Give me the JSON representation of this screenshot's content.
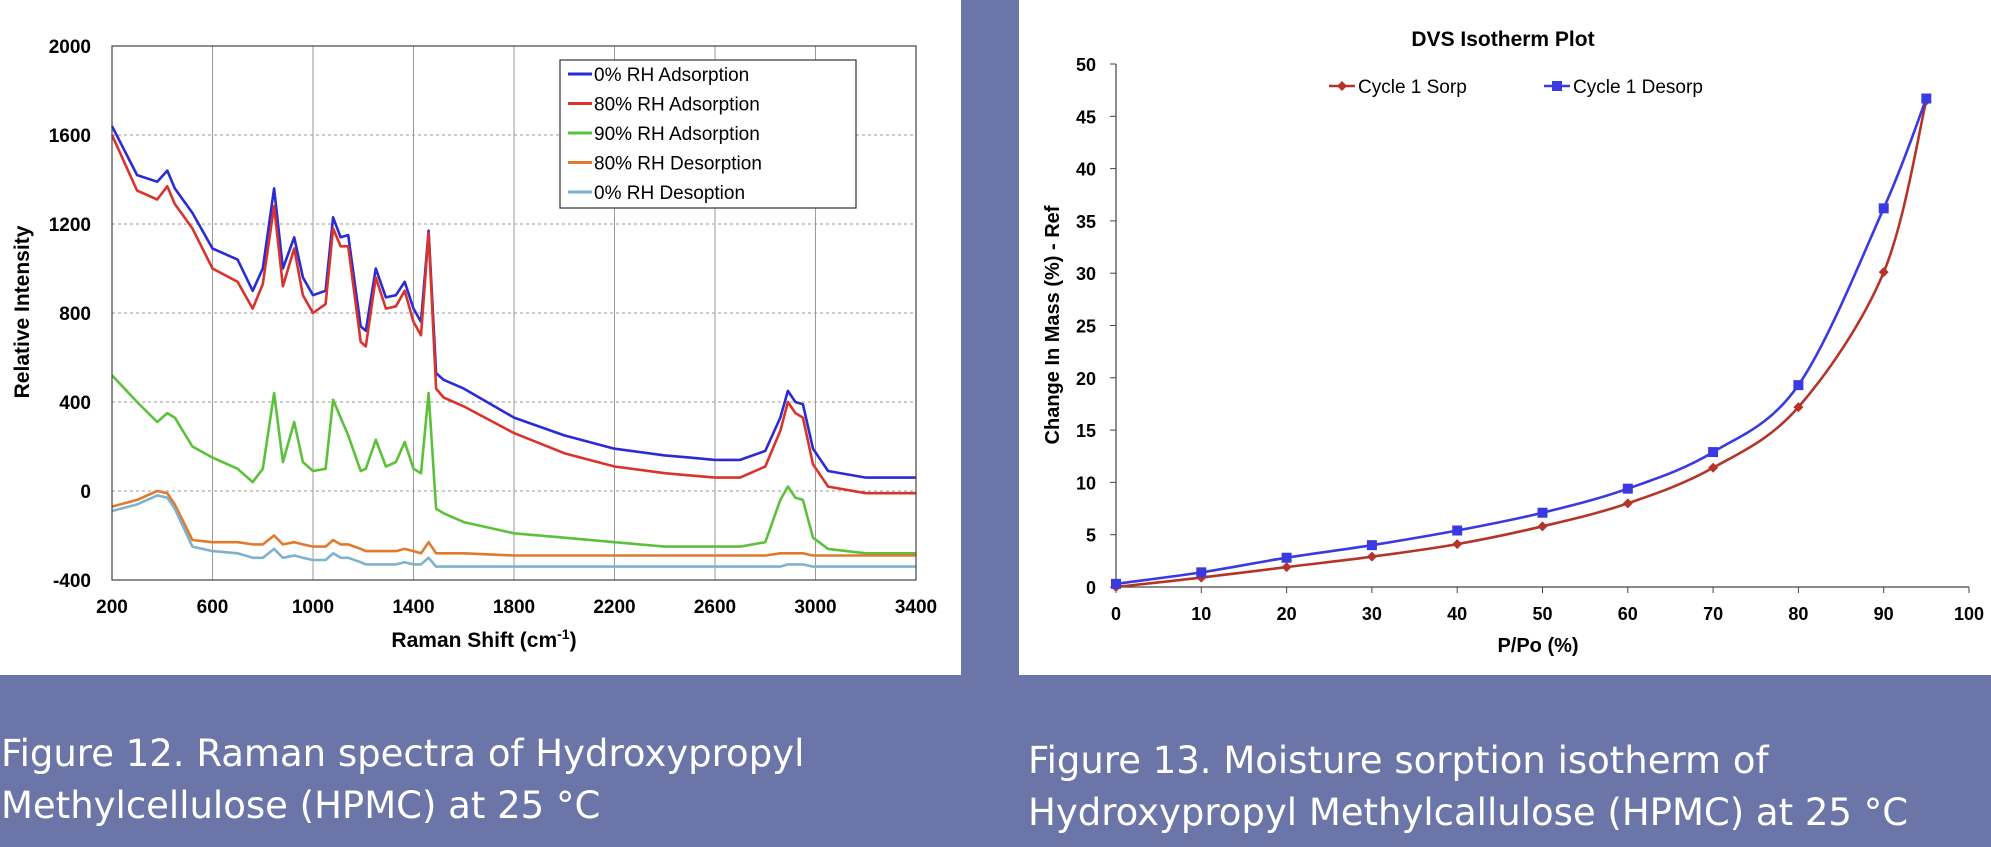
{
  "charts": {
    "raman": {
      "ylabel": "Relative Intensity",
      "xlabel_main": "Raman Shift (cm",
      "xlabel_sup": "-1",
      "xlabel_end": ")",
      "xticks": [
        "200",
        "600",
        "1000",
        "1400",
        "1800",
        "2200",
        "2600",
        "3000",
        "3400"
      ],
      "yticks": [
        "2000",
        "1600",
        "1200",
        "800",
        "400",
        "0",
        "-400"
      ],
      "legend": [
        "0% RH Adsorption",
        "80% RH Adsorption",
        "90% RH Adsorption",
        "80% RH Desorption",
        "0% RH Desoption"
      ]
    },
    "dvs": {
      "title": "DVS Isotherm Plot",
      "xlabel": "P/Po (%)",
      "ylabel": "Change In Mass (%) - Ref",
      "xticks": [
        "0",
        "10",
        "20",
        "30",
        "40",
        "50",
        "60",
        "70",
        "80",
        "90",
        "100"
      ],
      "yticks": [
        "50",
        "45",
        "40",
        "35",
        "30",
        "25",
        "20",
        "15",
        "10",
        "5",
        "0"
      ],
      "legend": [
        "Cycle 1 Sorp",
        "Cycle 1 Desorp"
      ]
    }
  },
  "captions": {
    "left": [
      "Figure 12. Raman spectra of Hydroxypropyl",
      "Methylcellulose (HPMC) at 25 °C"
    ],
    "right": [
      "Figure 13. Moisture sorption isotherm of",
      "Hydroxypropyl Methylcallulose (HPMC) at 25 °C"
    ]
  },
  "colors": {
    "page_background": "#6b75a7",
    "rh0_ads": "#2b2bd6",
    "rh80_ads": "#d8342b",
    "rh90_ads": "#5cc13a",
    "rh80_des": "#e07a2d",
    "rh0_des": "#7fb2cc",
    "sorp": "#b5342a",
    "desorp": "#3a3ae0"
  },
  "chart_data": [
    {
      "type": "line",
      "title": "",
      "xlabel": "Raman Shift (cm-1)",
      "ylabel": "Relative Intensity",
      "xlim": [
        200,
        3400
      ],
      "ylim": [
        -400,
        2000
      ],
      "grid": true,
      "legend_position": "top-right",
      "x": [
        200,
        300,
        380,
        420,
        450,
        520,
        600,
        700,
        760,
        800,
        845,
        880,
        925,
        960,
        1000,
        1050,
        1080,
        1110,
        1140,
        1190,
        1210,
        1250,
        1290,
        1330,
        1365,
        1400,
        1430,
        1460,
        1490,
        1520,
        1600,
        1800,
        2000,
        2200,
        2400,
        2500,
        2600,
        2700,
        2800,
        2860,
        2890,
        2920,
        2950,
        2990,
        3050,
        3200,
        3400
      ],
      "series": [
        {
          "name": "0% RH Adsorption",
          "values": [
            1640,
            1420,
            1390,
            1440,
            1360,
            1250,
            1090,
            1040,
            900,
            1000,
            1360,
            1000,
            1140,
            960,
            880,
            900,
            1230,
            1140,
            1150,
            740,
            720,
            1000,
            870,
            880,
            940,
            820,
            760,
            1170,
            530,
            500,
            460,
            330,
            250,
            190,
            160,
            150,
            140,
            140,
            180,
            330,
            450,
            400,
            390,
            190,
            90,
            60,
            60
          ]
        },
        {
          "name": "80% RH Adsorption",
          "values": [
            1600,
            1350,
            1310,
            1370,
            1290,
            1180,
            1000,
            940,
            820,
            930,
            1280,
            920,
            1090,
            880,
            800,
            840,
            1180,
            1100,
            1100,
            670,
            650,
            960,
            820,
            830,
            900,
            760,
            700,
            1160,
            460,
            420,
            380,
            260,
            170,
            110,
            80,
            70,
            60,
            60,
            110,
            270,
            400,
            350,
            330,
            120,
            20,
            -10,
            -10
          ]
        },
        {
          "name": "90% RH Adsorption",
          "values": [
            520,
            400,
            310,
            350,
            330,
            200,
            150,
            100,
            40,
            100,
            440,
            130,
            310,
            130,
            90,
            100,
            410,
            330,
            250,
            90,
            100,
            230,
            110,
            130,
            220,
            100,
            80,
            440,
            -80,
            -100,
            -140,
            -190,
            -210,
            -230,
            -250,
            -250,
            -250,
            -250,
            -230,
            -40,
            20,
            -30,
            -40,
            -210,
            -260,
            -280,
            -280
          ]
        },
        {
          "name": "80% RH Desorption",
          "values": [
            -70,
            -40,
            0,
            -10,
            -60,
            -220,
            -230,
            -230,
            -240,
            -240,
            -200,
            -240,
            -230,
            -240,
            -250,
            -250,
            -220,
            -240,
            -240,
            -260,
            -270,
            -270,
            -270,
            -270,
            -260,
            -270,
            -280,
            -230,
            -280,
            -280,
            -280,
            -290,
            -290,
            -290,
            -290,
            -290,
            -290,
            -290,
            -290,
            -280,
            -280,
            -280,
            -280,
            -290,
            -290,
            -290,
            -290
          ]
        },
        {
          "name": "0% RH Desoption",
          "values": [
            -90,
            -60,
            -20,
            -30,
            -80,
            -250,
            -270,
            -280,
            -300,
            -300,
            -260,
            -300,
            -290,
            -300,
            -310,
            -310,
            -280,
            -300,
            -300,
            -320,
            -330,
            -330,
            -330,
            -330,
            -320,
            -330,
            -330,
            -300,
            -340,
            -340,
            -340,
            -340,
            -340,
            -340,
            -340,
            -340,
            -340,
            -340,
            -340,
            -340,
            -330,
            -330,
            -330,
            -340,
            -340,
            -340,
            -340
          ]
        }
      ]
    },
    {
      "type": "line",
      "title": "DVS Isotherm Plot",
      "xlabel": "P/Po (%)",
      "ylabel": "Change In Mass (%) - Ref",
      "xlim": [
        0,
        100
      ],
      "ylim": [
        0,
        50
      ],
      "grid": false,
      "legend_position": "top",
      "series": [
        {
          "name": "Cycle 1 Sorp",
          "marker": "diamond",
          "x": [
            0,
            10,
            20,
            30,
            40,
            50,
            60,
            70,
            80,
            90,
            95
          ],
          "values": [
            0.0,
            0.9,
            1.9,
            2.9,
            4.1,
            5.8,
            8.0,
            11.4,
            17.2,
            30.1,
            46.5
          ]
        },
        {
          "name": "Cycle 1 Desorp",
          "marker": "square",
          "x": [
            0,
            10,
            20,
            30,
            40,
            50,
            60,
            70,
            80,
            90,
            95
          ],
          "values": [
            0.3,
            1.4,
            2.8,
            4.0,
            5.4,
            7.1,
            9.4,
            12.9,
            19.3,
            36.2,
            46.7
          ]
        }
      ]
    }
  ]
}
